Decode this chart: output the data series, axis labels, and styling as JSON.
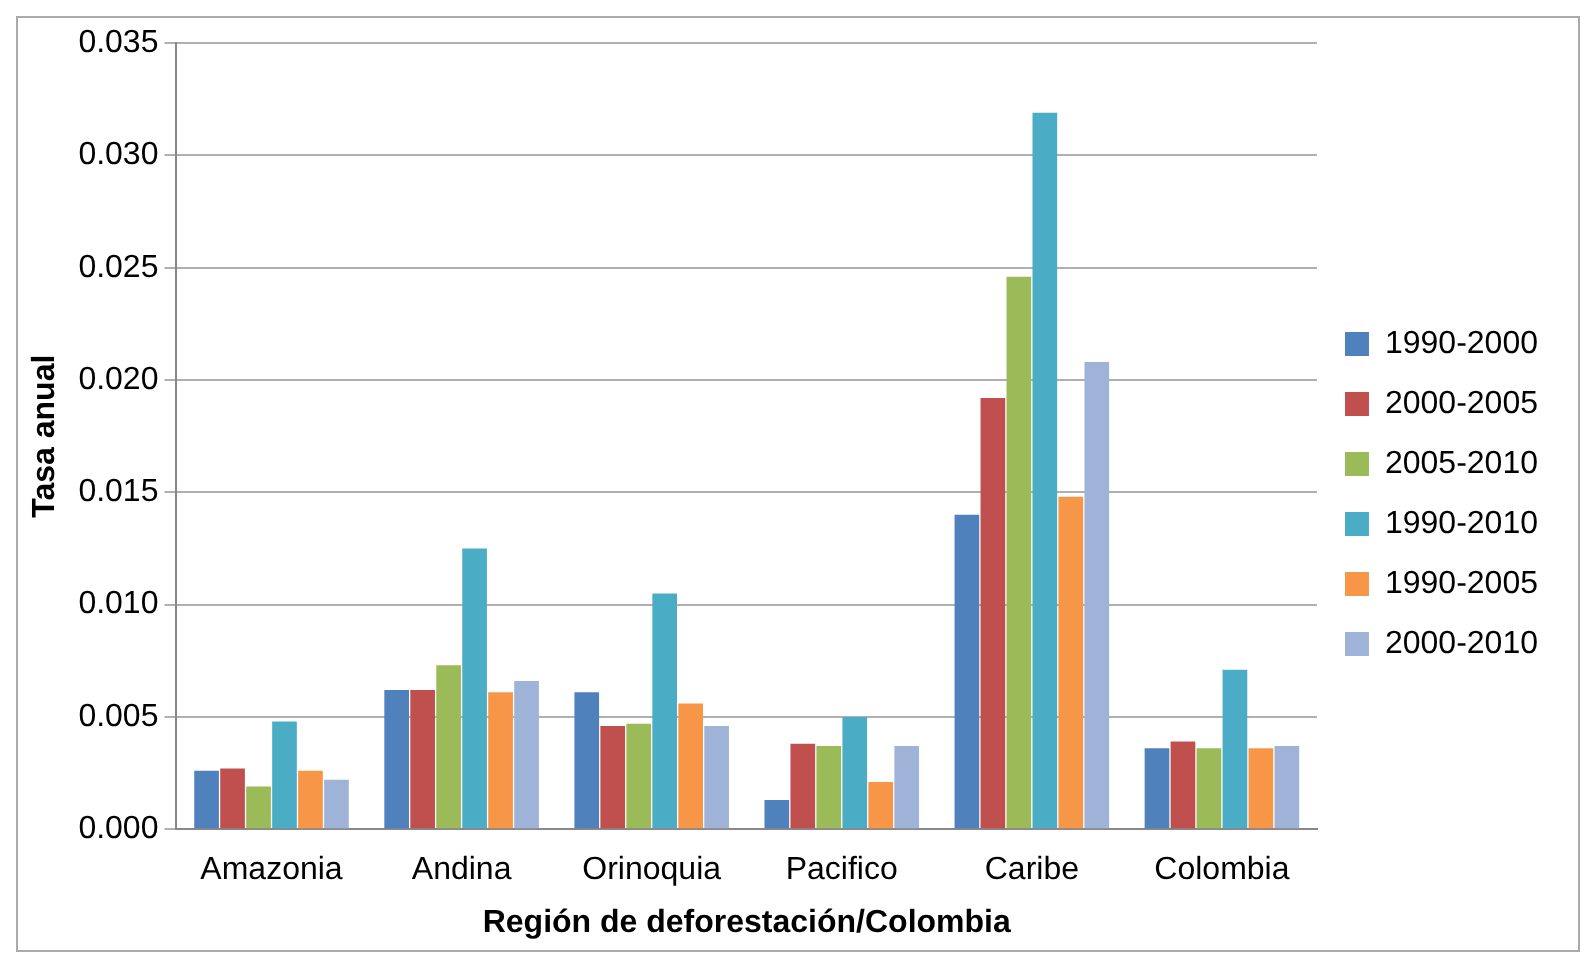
{
  "chart_data": {
    "type": "bar",
    "xlabel": "Región de deforestación/Colombia",
    "ylabel": "Tasa anual",
    "categories": [
      "Amazonia",
      "Andina",
      "Orinoquia",
      "Pacifico",
      "Caribe",
      "Colombia"
    ],
    "series": [
      {
        "name": "1990-2000",
        "color": "#4f81bd",
        "values": [
          0.0026,
          0.0062,
          0.0061,
          0.0013,
          0.014,
          0.0036
        ]
      },
      {
        "name": "2000-2005",
        "color": "#c0504d",
        "values": [
          0.0027,
          0.0062,
          0.0046,
          0.0038,
          0.0192,
          0.0039
        ]
      },
      {
        "name": "2005-2010",
        "color": "#9bbb59",
        "values": [
          0.0019,
          0.0073,
          0.0047,
          0.0037,
          0.0246,
          0.0036
        ]
      },
      {
        "name": "1990-2010",
        "color": "#4bacc6",
        "values": [
          0.0048,
          0.0125,
          0.0105,
          0.005,
          0.0319,
          0.0071
        ]
      },
      {
        "name": "1990-2005",
        "color": "#f79646",
        "values": [
          0.0026,
          0.0061,
          0.0056,
          0.0021,
          0.0148,
          0.0036
        ]
      },
      {
        "name": "2000-2010",
        "color": "#9fb3d8",
        "values": [
          0.0022,
          0.0066,
          0.0046,
          0.0037,
          0.0208,
          0.0037
        ]
      }
    ],
    "ylim": [
      0,
      0.035
    ],
    "yticks": [
      {
        "value": 0,
        "label": "0.000"
      },
      {
        "value": 0.005,
        "label": "0.005"
      },
      {
        "value": 0.01,
        "label": "0.010"
      },
      {
        "value": 0.015,
        "label": "0.015"
      },
      {
        "value": 0.02,
        "label": "0.020"
      },
      {
        "value": 0.025,
        "label": "0.025"
      },
      {
        "value": 0.03,
        "label": "0.030"
      },
      {
        "value": 0.035,
        "label": "0.035"
      }
    ],
    "grid": "y",
    "legend": "right"
  }
}
